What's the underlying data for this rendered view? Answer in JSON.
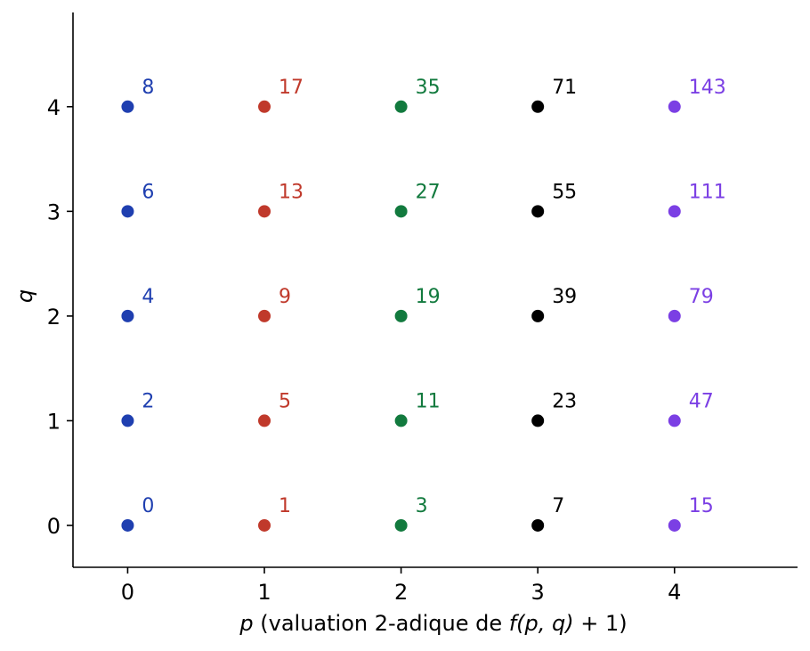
{
  "chart_data": {
    "type": "scatter",
    "title": "",
    "xlabel": {
      "var": "p",
      "text_before": "(valuation 2-adique de ",
      "func": "f",
      "args": "(p, q)",
      "tail": " + 1)"
    },
    "ylabel": "q",
    "xlim": [
      -0.4,
      4.9
    ],
    "ylim": [
      -0.4,
      4.9
    ],
    "xticks": [
      0,
      1,
      2,
      3,
      4
    ],
    "yticks": [
      0,
      1,
      2,
      3,
      4
    ],
    "grid": false,
    "series": [
      {
        "color": "#1f3fb0",
        "points": [
          {
            "x": 0,
            "y": 0,
            "label": "0"
          },
          {
            "x": 0,
            "y": 1,
            "label": "2"
          },
          {
            "x": 0,
            "y": 2,
            "label": "4"
          },
          {
            "x": 0,
            "y": 3,
            "label": "6"
          },
          {
            "x": 0,
            "y": 4,
            "label": "8"
          }
        ]
      },
      {
        "color": "#c0392b",
        "points": [
          {
            "x": 1,
            "y": 0,
            "label": "1"
          },
          {
            "x": 1,
            "y": 1,
            "label": "5"
          },
          {
            "x": 1,
            "y": 2,
            "label": "9"
          },
          {
            "x": 1,
            "y": 3,
            "label": "13"
          },
          {
            "x": 1,
            "y": 4,
            "label": "17"
          }
        ]
      },
      {
        "color": "#127a3e",
        "points": [
          {
            "x": 2,
            "y": 0,
            "label": "3"
          },
          {
            "x": 2,
            "y": 1,
            "label": "11"
          },
          {
            "x": 2,
            "y": 2,
            "label": "19"
          },
          {
            "x": 2,
            "y": 3,
            "label": "27"
          },
          {
            "x": 2,
            "y": 4,
            "label": "35"
          }
        ]
      },
      {
        "color": "#000000",
        "points": [
          {
            "x": 3,
            "y": 0,
            "label": "7"
          },
          {
            "x": 3,
            "y": 1,
            "label": "23"
          },
          {
            "x": 3,
            "y": 2,
            "label": "39"
          },
          {
            "x": 3,
            "y": 3,
            "label": "55"
          },
          {
            "x": 3,
            "y": 4,
            "label": "71"
          }
        ]
      },
      {
        "color": "#7b3fe4",
        "points": [
          {
            "x": 4,
            "y": 0,
            "label": "15"
          },
          {
            "x": 4,
            "y": 1,
            "label": "47"
          },
          {
            "x": 4,
            "y": 2,
            "label": "79"
          },
          {
            "x": 4,
            "y": 3,
            "label": "111"
          },
          {
            "x": 4,
            "y": 4,
            "label": "143"
          }
        ]
      }
    ]
  }
}
